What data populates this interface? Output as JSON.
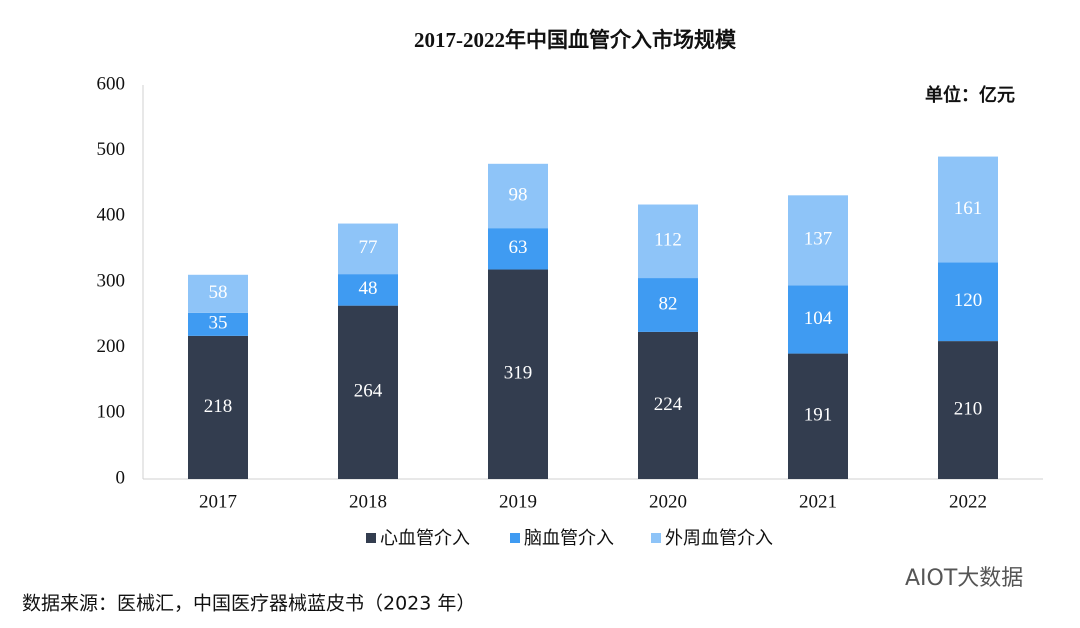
{
  "chart_data": {
    "type": "bar",
    "stacked": true,
    "title": "2017-2022年中国血管介入市场规模",
    "unit": "单位：亿元",
    "categories": [
      "2017",
      "2018",
      "2019",
      "2020",
      "2021",
      "2022"
    ],
    "series": [
      {
        "name": "心血管介入",
        "color": "#333d4f",
        "values": [
          218,
          264,
          319,
          224,
          191,
          210
        ]
      },
      {
        "name": "脑血管介入",
        "color": "#3f9bf2",
        "values": [
          35,
          48,
          63,
          82,
          104,
          120
        ]
      },
      {
        "name": "外周血管介入",
        "color": "#8ec4f8",
        "values": [
          58,
          77,
          98,
          112,
          137,
          161
        ]
      }
    ],
    "ylim": [
      0,
      600
    ],
    "yticks": [
      0,
      100,
      200,
      300,
      400,
      500,
      600
    ],
    "grid": false,
    "legend": "bottom"
  },
  "source": "数据来源：医械汇，中国医疗器械蓝皮书（2023 年）",
  "watermark": "AIOT大数据"
}
